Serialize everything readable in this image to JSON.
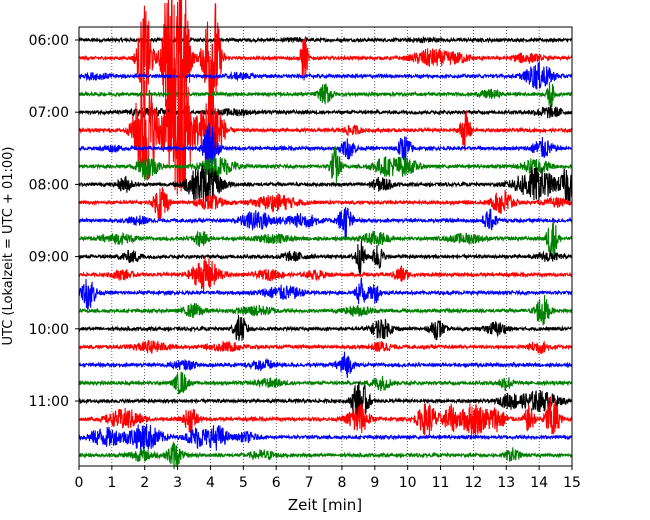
{
  "chart_data": {
    "type": "line",
    "xlabel": "Zeit  [min]",
    "ylabel": "UTC (Lokalzeit = UTC + 01:00)",
    "xlim": [
      0,
      15
    ],
    "x_ticks": [
      0,
      1,
      2,
      3,
      4,
      5,
      6,
      7,
      8,
      9,
      10,
      11,
      12,
      13,
      14,
      15
    ],
    "x_tick_labels": [
      "0",
      "1",
      "2",
      "3",
      "4",
      "5",
      "6",
      "7",
      "8",
      "9",
      "10",
      "11",
      "12",
      "13",
      "14",
      "15"
    ],
    "y_tick_labels": [
      "06:00",
      "07:00",
      "08:00",
      "09:00",
      "10:00",
      "11:00"
    ],
    "y_tick_rows": [
      0,
      4,
      8,
      12,
      16,
      20
    ],
    "grid_x": true,
    "color_cycle": [
      "#000000",
      "#ff0000",
      "#0000ff",
      "#008000"
    ],
    "traces": [
      {
        "start": "06:00",
        "color": "#000000",
        "events": [
          [
            6.6,
            0.3,
            0.2
          ],
          [
            10.5,
            0.4,
            0.25
          ]
        ]
      },
      {
        "start": "06:15",
        "color": "#ff0000",
        "events": [
          [
            2.0,
            0.2,
            8
          ],
          [
            2.75,
            0.2,
            14
          ],
          [
            3.15,
            0.2,
            12
          ],
          [
            4.05,
            0.2,
            10
          ],
          [
            4.0,
            0.3,
            2
          ],
          [
            6.85,
            0.1,
            4
          ],
          [
            10.7,
            0.5,
            1.3
          ],
          [
            11.5,
            0.4,
            0.7
          ],
          [
            13.6,
            0.4,
            0.7
          ]
        ]
      },
      {
        "start": "06:30",
        "color": "#0000ff",
        "events": [
          [
            0.5,
            0.5,
            0.4
          ],
          [
            4.9,
            0.4,
            0.4
          ],
          [
            14.0,
            0.4,
            2
          ]
        ]
      },
      {
        "start": "06:45",
        "color": "#008000",
        "events": [
          [
            7.5,
            0.2,
            1.5
          ],
          [
            12.5,
            0.3,
            0.6
          ],
          [
            14.35,
            0.1,
            2
          ]
        ]
      },
      {
        "start": "07:00",
        "color": "#000000",
        "events": [
          [
            2.1,
            0.5,
            0.6
          ],
          [
            4.7,
            0.5,
            0.4
          ],
          [
            14.3,
            0.4,
            0.8
          ]
        ]
      },
      {
        "start": "07:15",
        "color": "#ff0000",
        "events": [
          [
            2.0,
            0.3,
            9
          ],
          [
            3.0,
            0.5,
            7
          ],
          [
            3.1,
            0.2,
            9
          ],
          [
            4.05,
            0.3,
            7
          ],
          [
            8.3,
            0.3,
            0.6
          ],
          [
            11.75,
            0.15,
            3
          ]
        ]
      },
      {
        "start": "07:30",
        "color": "#0000ff",
        "events": [
          [
            1.0,
            0.3,
            0.4
          ],
          [
            4.0,
            0.2,
            4
          ],
          [
            8.2,
            0.2,
            1.5
          ],
          [
            9.9,
            0.2,
            2
          ],
          [
            14.1,
            0.3,
            1.5
          ]
        ]
      },
      {
        "start": "07:45",
        "color": "#008000",
        "events": [
          [
            2.1,
            0.3,
            2
          ],
          [
            4.2,
            0.5,
            1.5
          ],
          [
            7.8,
            0.15,
            3
          ],
          [
            9.3,
            0.4,
            1.2
          ],
          [
            9.9,
            0.4,
            1.2
          ],
          [
            13.9,
            0.4,
            1.2
          ]
        ]
      },
      {
        "start": "08:00",
        "color": "#000000",
        "events": [
          [
            1.4,
            0.2,
            1.2
          ],
          [
            3.8,
            0.5,
            3
          ],
          [
            9.2,
            0.3,
            1
          ],
          [
            13.9,
            0.6,
            2.5
          ],
          [
            14.9,
            0.2,
            3
          ]
        ]
      },
      {
        "start": "08:15",
        "color": "#ff0000",
        "events": [
          [
            2.5,
            0.2,
            3
          ],
          [
            4.0,
            0.4,
            1
          ],
          [
            6.0,
            0.6,
            1.2
          ],
          [
            12.9,
            0.3,
            2
          ],
          [
            14.5,
            0.3,
            0.6
          ]
        ]
      },
      {
        "start": "08:30",
        "color": "#0000ff",
        "events": [
          [
            1.8,
            0.3,
            0.6
          ],
          [
            5.4,
            0.5,
            1.4
          ],
          [
            6.8,
            0.5,
            1
          ],
          [
            8.1,
            0.2,
            2.5
          ],
          [
            12.5,
            0.2,
            1.5
          ]
        ]
      },
      {
        "start": "08:45",
        "color": "#008000",
        "events": [
          [
            1.2,
            0.5,
            0.7
          ],
          [
            3.7,
            0.2,
            1.2
          ],
          [
            5.9,
            0.5,
            0.6
          ],
          [
            9.0,
            0.4,
            1
          ],
          [
            11.8,
            0.5,
            0.7
          ],
          [
            14.4,
            0.15,
            3.5
          ]
        ]
      },
      {
        "start": "09:00",
        "color": "#000000",
        "events": [
          [
            1.6,
            0.3,
            0.8
          ],
          [
            6.5,
            0.4,
            0.6
          ],
          [
            8.55,
            0.15,
            2.5
          ],
          [
            9.1,
            0.15,
            2
          ],
          [
            14.3,
            0.3,
            0.7
          ]
        ]
      },
      {
        "start": "09:15",
        "color": "#ff0000",
        "events": [
          [
            1.3,
            0.3,
            0.7
          ],
          [
            3.85,
            0.4,
            2.5
          ],
          [
            5.8,
            0.4,
            0.7
          ],
          [
            7.2,
            0.3,
            0.6
          ],
          [
            9.8,
            0.2,
            1.2
          ]
        ]
      },
      {
        "start": "09:30",
        "color": "#0000ff",
        "events": [
          [
            0.3,
            0.2,
            2.5
          ],
          [
            6.2,
            0.6,
            1
          ],
          [
            8.6,
            0.15,
            2.5
          ],
          [
            9.0,
            0.15,
            1.5
          ]
        ]
      },
      {
        "start": "09:45",
        "color": "#008000",
        "events": [
          [
            3.5,
            0.3,
            1
          ],
          [
            5.4,
            0.5,
            0.7
          ],
          [
            8.5,
            0.4,
            0.7
          ],
          [
            14.1,
            0.2,
            2.5
          ]
        ]
      },
      {
        "start": "10:00",
        "color": "#000000",
        "events": [
          [
            4.9,
            0.2,
            2
          ],
          [
            9.2,
            0.3,
            1.5
          ],
          [
            10.9,
            0.2,
            1.5
          ],
          [
            12.7,
            0.3,
            1
          ]
        ]
      },
      {
        "start": "10:15",
        "color": "#ff0000",
        "events": [
          [
            2.2,
            0.5,
            0.8
          ],
          [
            4.5,
            0.5,
            0.6
          ],
          [
            9.2,
            0.3,
            0.7
          ],
          [
            14.0,
            0.3,
            0.9
          ]
        ]
      },
      {
        "start": "10:30",
        "color": "#0000ff",
        "events": [
          [
            3.2,
            0.4,
            0.6
          ],
          [
            5.6,
            0.4,
            0.7
          ],
          [
            8.1,
            0.2,
            2
          ]
        ]
      },
      {
        "start": "10:45",
        "color": "#008000",
        "events": [
          [
            3.1,
            0.2,
            1.7
          ],
          [
            5.8,
            0.4,
            0.6
          ],
          [
            9.2,
            0.3,
            1
          ],
          [
            13.0,
            0.2,
            1
          ]
        ]
      },
      {
        "start": "11:00",
        "color": "#000000",
        "events": [
          [
            8.45,
            0.15,
            3
          ],
          [
            8.7,
            0.15,
            2
          ],
          [
            13.1,
            0.3,
            1
          ],
          [
            14.0,
            0.6,
            1.5
          ]
        ]
      },
      {
        "start": "11:15",
        "color": "#ff0000",
        "events": [
          [
            1.4,
            0.5,
            1.5
          ],
          [
            3.4,
            0.2,
            2
          ],
          [
            8.5,
            0.3,
            2.5
          ],
          [
            10.6,
            0.3,
            2.5
          ],
          [
            11.3,
            0.2,
            2
          ],
          [
            12.0,
            0.4,
            2.5
          ],
          [
            12.7,
            0.3,
            1.7
          ],
          [
            13.7,
            0.15,
            2
          ],
          [
            14.4,
            0.2,
            3.5
          ]
        ]
      },
      {
        "start": "11:30",
        "color": "#0000ff",
        "events": [
          [
            0.8,
            0.5,
            1.4
          ],
          [
            2.0,
            0.5,
            2
          ],
          [
            3.6,
            0.3,
            1.5
          ],
          [
            4.2,
            0.3,
            1.8
          ],
          [
            5.1,
            0.3,
            0.7
          ]
        ]
      },
      {
        "start": "11:45",
        "color": "#008000",
        "events": [
          [
            1.9,
            0.4,
            0.8
          ],
          [
            2.9,
            0.2,
            2
          ],
          [
            5.6,
            0.4,
            0.6
          ],
          [
            13.2,
            0.2,
            1
          ]
        ]
      }
    ]
  }
}
